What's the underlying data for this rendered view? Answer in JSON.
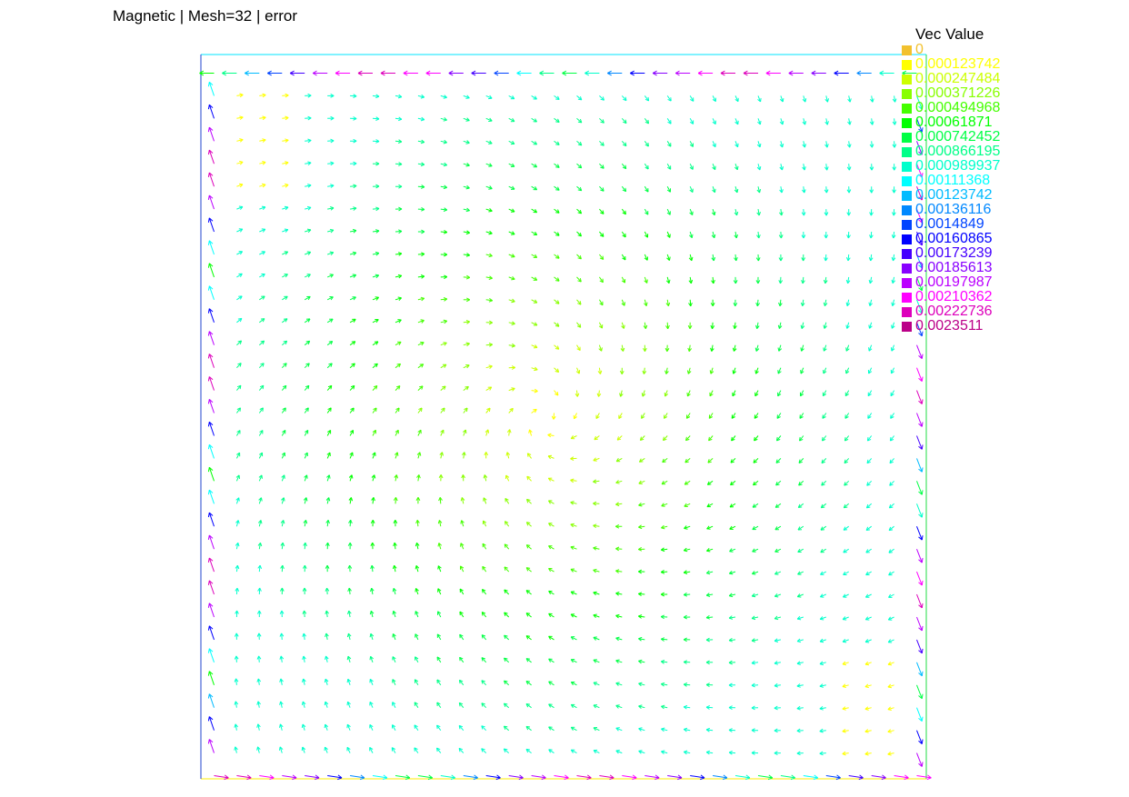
{
  "title": "Magnetic | Mesh=32 | error",
  "legend": {
    "title": "Vec Value",
    "items": [
      {
        "label": "0",
        "color": "#f2c12e"
      },
      {
        "label": "0.000123742",
        "color": "#ffff00"
      },
      {
        "label": "0.000247484",
        "color": "#ccff00"
      },
      {
        "label": "0.000371226",
        "color": "#88ff00"
      },
      {
        "label": "0.000494968",
        "color": "#44ff00"
      },
      {
        "label": "0.00061871",
        "color": "#00ff00"
      },
      {
        "label": "0.000742452",
        "color": "#00ff44"
      },
      {
        "label": "0.000866195",
        "color": "#00ff88"
      },
      {
        "label": "0.000989937",
        "color": "#00ffcc"
      },
      {
        "label": "0.00111368",
        "color": "#00ffff"
      },
      {
        "label": "0.00123742",
        "color": "#00bbff"
      },
      {
        "label": "0.00136116",
        "color": "#0088ff"
      },
      {
        "label": "0.0014849",
        "color": "#0044ff"
      },
      {
        "label": "0.00160865",
        "color": "#0000ff"
      },
      {
        "label": "0.00173239",
        "color": "#4400ff"
      },
      {
        "label": "0.00185613",
        "color": "#8800ff"
      },
      {
        "label": "0.00197987",
        "color": "#bb00ff"
      },
      {
        "label": "0.00210362",
        "color": "#ff00ff"
      },
      {
        "label": "0.00222736",
        "color": "#dd00bb"
      },
      {
        "label": "0.0023511",
        "color": "#bb0088"
      }
    ]
  },
  "chart_data": {
    "type": "vector-field",
    "title": "Magnetic | Mesh=32 | error",
    "mesh": 32,
    "field": "error",
    "legend_title": "Vec Value",
    "value_range": [
      0,
      0.0023511
    ],
    "legend_placement": "top-right",
    "grid": false
  }
}
